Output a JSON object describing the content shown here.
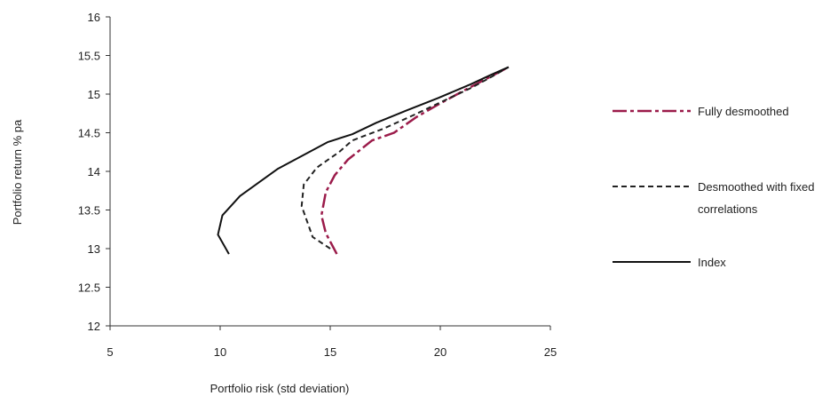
{
  "chart_data": {
    "type": "line",
    "xlabel": "Portfolio risk (std deviation)",
    "ylabel": "Portfolio return % pa",
    "xlim": [
      5,
      25
    ],
    "ylim": [
      12,
      16
    ],
    "x_ticks": [
      "5",
      "10",
      "15",
      "20",
      "25"
    ],
    "y_ticks": [
      "12",
      "12.5",
      "13",
      "13.5",
      "14",
      "14.5",
      "15",
      "15.5",
      "16"
    ],
    "grid": false,
    "legend_position": "right",
    "series": [
      {
        "name": "Fully desmoothed",
        "color": "#9b1b4a",
        "style": "dash-dot",
        "points": [
          [
            15.3,
            12.93
          ],
          [
            14.8,
            13.2
          ],
          [
            14.6,
            13.43
          ],
          [
            14.8,
            13.73
          ],
          [
            15.2,
            13.95
          ],
          [
            15.8,
            14.15
          ],
          [
            16.9,
            14.4
          ],
          [
            17.9,
            14.5
          ],
          [
            18.9,
            14.7
          ],
          [
            20.0,
            14.88
          ],
          [
            21.1,
            15.05
          ],
          [
            22.1,
            15.2
          ],
          [
            23.1,
            15.35
          ]
        ]
      },
      {
        "name": "Desmoothed with fixed correlations",
        "color": "#222222",
        "style": "dashed",
        "points": [
          [
            15.0,
            13.0
          ],
          [
            14.2,
            13.15
          ],
          [
            13.7,
            13.55
          ],
          [
            13.8,
            13.83
          ],
          [
            14.4,
            14.05
          ],
          [
            15.4,
            14.25
          ],
          [
            16.0,
            14.4
          ],
          [
            17.4,
            14.55
          ],
          [
            18.8,
            14.73
          ],
          [
            20.2,
            14.92
          ],
          [
            21.4,
            15.08
          ],
          [
            22.3,
            15.22
          ],
          [
            23.1,
            15.35
          ]
        ]
      },
      {
        "name": "Index",
        "color": "#111111",
        "style": "solid",
        "points": [
          [
            10.4,
            12.93
          ],
          [
            9.9,
            13.18
          ],
          [
            10.1,
            13.43
          ],
          [
            10.9,
            13.68
          ],
          [
            12.6,
            14.03
          ],
          [
            14.9,
            14.38
          ],
          [
            16.0,
            14.48
          ],
          [
            17.1,
            14.63
          ],
          [
            18.4,
            14.78
          ],
          [
            19.9,
            14.95
          ],
          [
            21.4,
            15.13
          ],
          [
            22.3,
            15.25
          ],
          [
            23.1,
            15.35
          ]
        ]
      }
    ]
  }
}
